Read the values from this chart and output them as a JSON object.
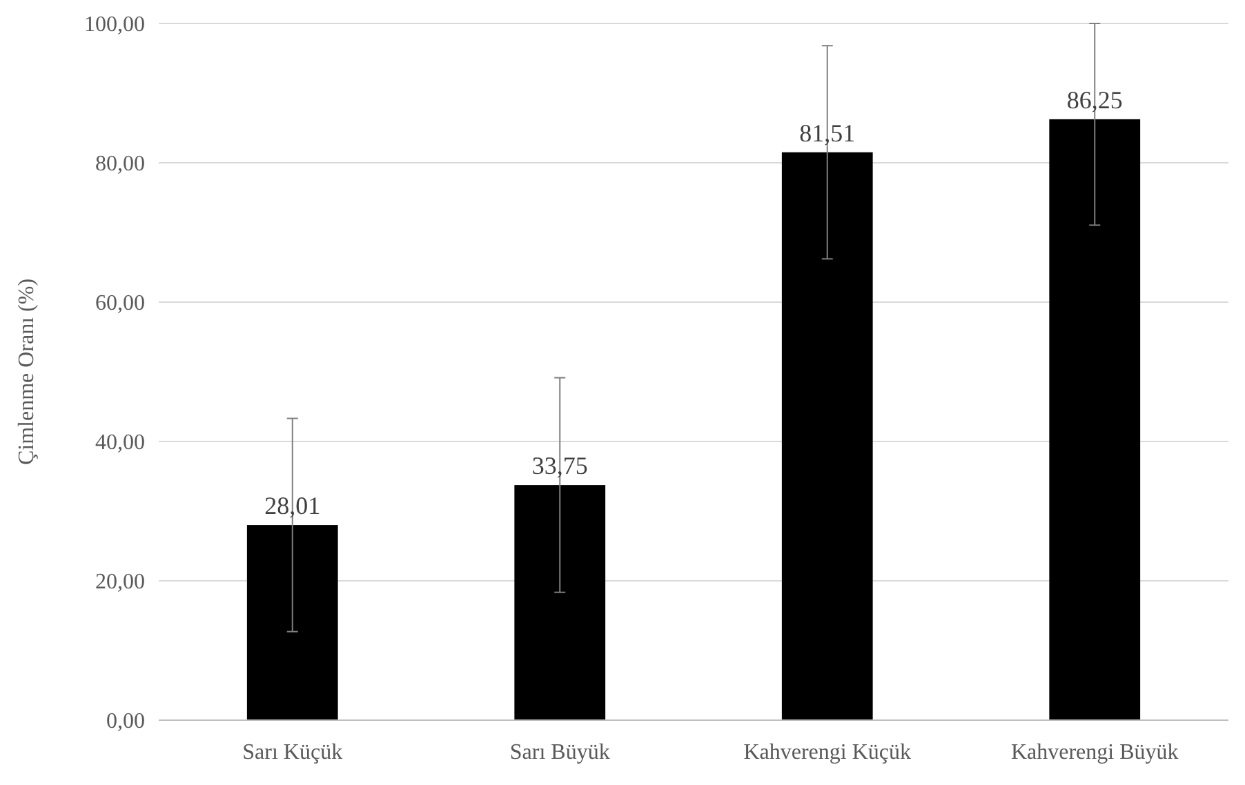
{
  "chart_data": {
    "type": "bar",
    "ylabel": "Çimlenme  Oranı (%)",
    "categories": [
      "Sarı Küçük",
      "Sarı Büyük",
      "Kahverengi Küçük",
      "Kahverengi Büyük"
    ],
    "values": [
      28.01,
      33.75,
      81.51,
      86.25
    ],
    "errors": [
      15.3,
      15.4,
      15.3,
      [
        71.05,
        100
      ]
    ],
    "value_labels": [
      "28,01",
      "33,75",
      "81,51",
      "86,25"
    ],
    "color": "#000000",
    "ylim": [
      0,
      100
    ],
    "yticks": [
      {
        "value": 0,
        "label": "0,00"
      },
      {
        "value": 20,
        "label": "20,00"
      },
      {
        "value": 40,
        "label": "40,00"
      },
      {
        "value": 60,
        "label": "60,00"
      },
      {
        "value": 80,
        "label": "80,00"
      },
      {
        "value": 100,
        "label": "100,00"
      }
    ],
    "grid": "y"
  }
}
